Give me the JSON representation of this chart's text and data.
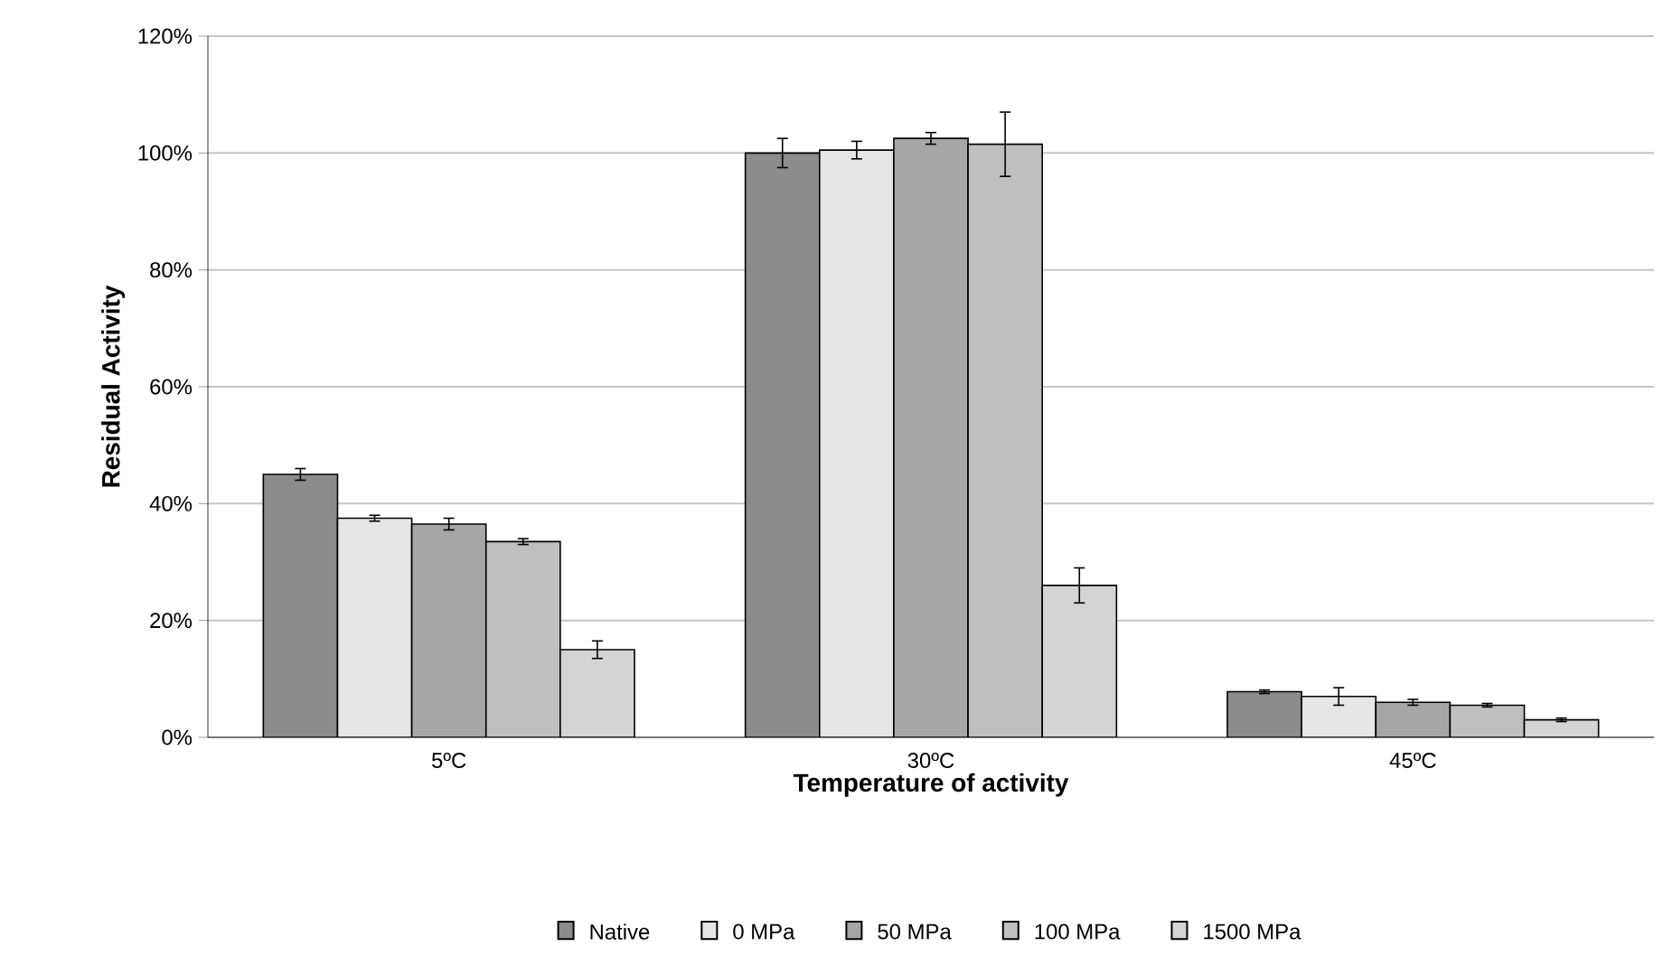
{
  "chart_data": {
    "type": "bar",
    "xlabel": "Temperature of activity",
    "ylabel": "Residual Activity",
    "categories": [
      "5ºC",
      "30ºC",
      "45ºC"
    ],
    "series": [
      {
        "name": "Native",
        "color": "#8c8c8c",
        "values": [
          45,
          100,
          7.8
        ],
        "errors": [
          1,
          2.5,
          0.3
        ]
      },
      {
        "name": "0 MPa",
        "color": "#e6e6e6",
        "values": [
          37.5,
          100.5,
          7
        ],
        "errors": [
          0.5,
          1.5,
          1.5
        ]
      },
      {
        "name": "50 MPa",
        "color": "#a6a6a6",
        "values": [
          36.5,
          102.5,
          6
        ],
        "errors": [
          1,
          1,
          0.5
        ]
      },
      {
        "name": "100 MPa",
        "color": "#bfbfbf",
        "values": [
          33.5,
          101.5,
          5.5
        ],
        "errors": [
          0.5,
          5.5,
          0.3
        ]
      },
      {
        "name": "1500 MPa",
        "color": "#d4d4d4",
        "values": [
          15,
          26,
          3
        ],
        "errors": [
          1.5,
          3,
          0.3
        ]
      }
    ],
    "ylim": [
      0,
      120
    ],
    "yticks": [
      {
        "value": 0,
        "label": "0%"
      },
      {
        "value": 20,
        "label": "20%"
      },
      {
        "value": 40,
        "label": "40%"
      },
      {
        "value": 60,
        "label": "60%"
      },
      {
        "value": 80,
        "label": "80%"
      },
      {
        "value": 100,
        "label": "100%"
      },
      {
        "value": 120,
        "label": "120%"
      }
    ],
    "grid": "y",
    "legend": "bottom"
  }
}
